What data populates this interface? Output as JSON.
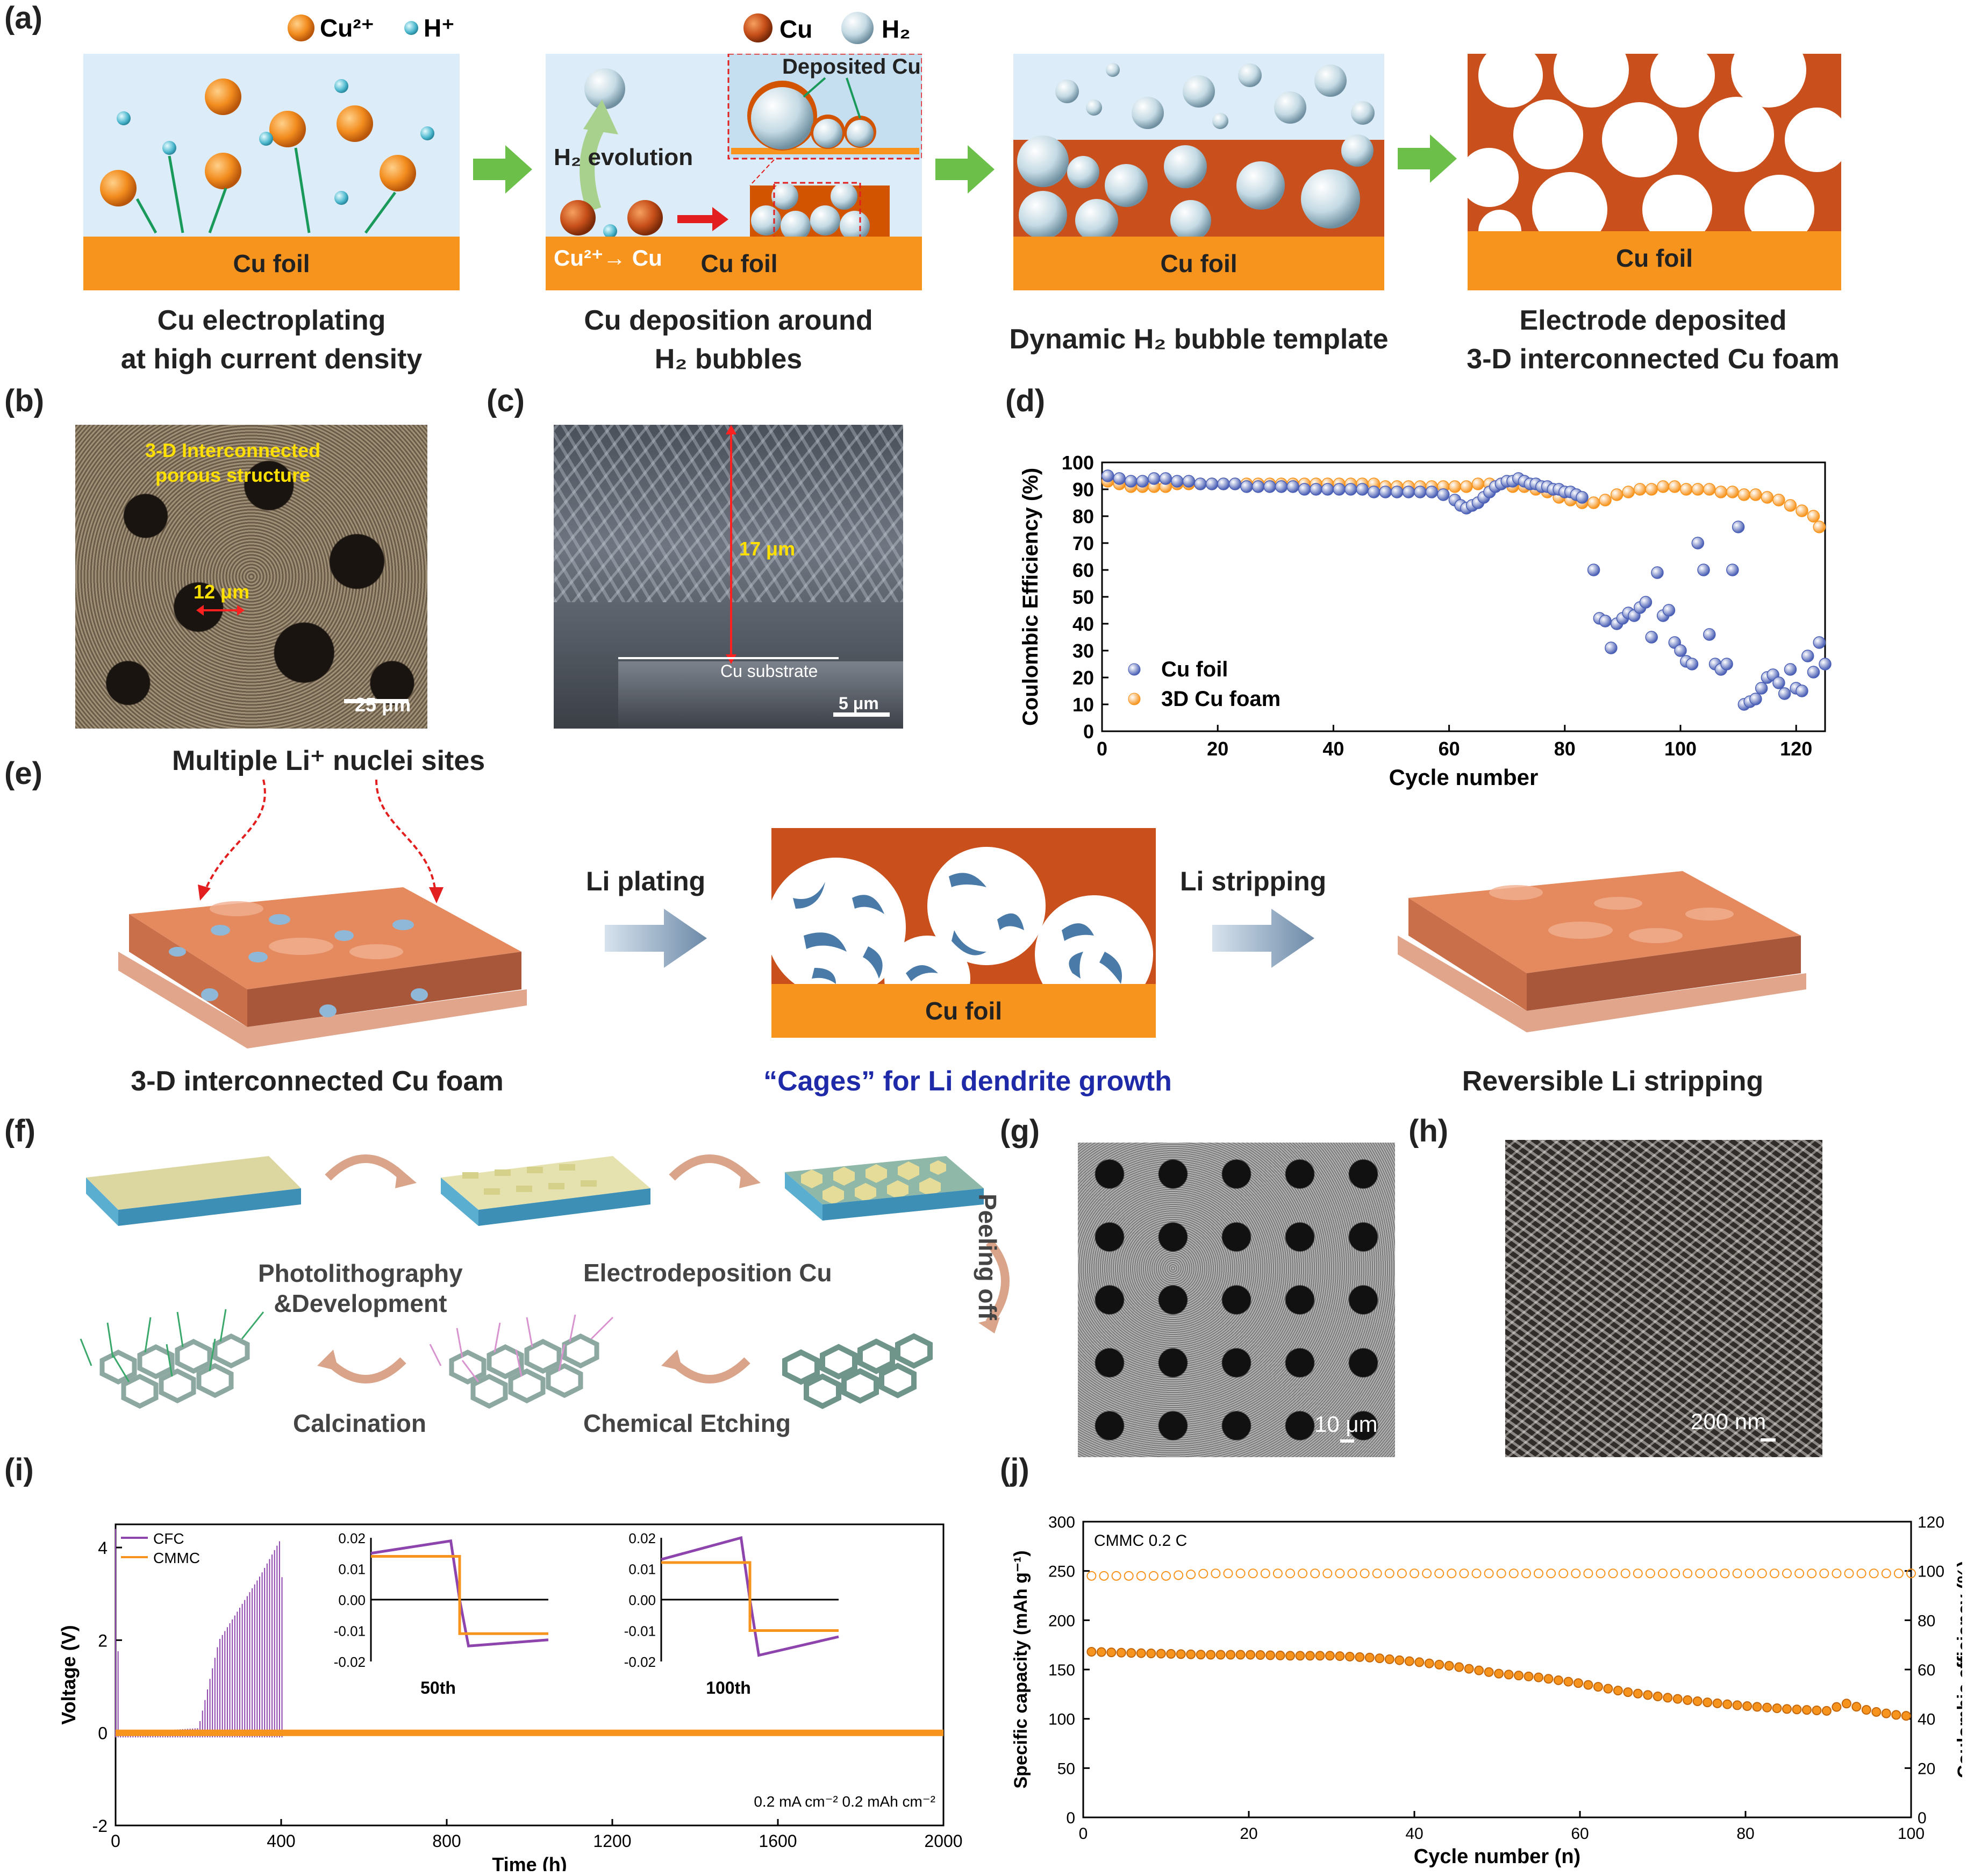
{
  "labels": {
    "a": "(a)",
    "b": "(b)",
    "c": "(c)",
    "d": "(d)",
    "e": "(e)",
    "f": "(f)",
    "g": "(g)",
    "h": "(h)",
    "i": "(i)",
    "j": "(j)"
  },
  "panel_a": {
    "legend1": {
      "cu2": "Cu²⁺",
      "h": "H⁺"
    },
    "legend2": {
      "cu": "Cu",
      "h2": "H₂"
    },
    "foil": "Cu foil",
    "h2_evolution": "H₂ evolution",
    "deposited_cu": "Deposited Cu",
    "cu2_to_cu": "Cu²⁺→ Cu",
    "captions": [
      "Cu electroplating\nat high current density",
      "Cu deposition around\nH₂ bubbles",
      "Dynamic H₂ bubble template",
      "Electrode deposited\n3-D interconnected Cu foam"
    ]
  },
  "panel_b": {
    "annotation": "3-D Interconnected\nporous structure",
    "pore": "12 μm",
    "scale": "25 μm"
  },
  "panel_c": {
    "height": "17 μm",
    "substrate": "Cu substrate",
    "scale": "5 μm"
  },
  "panel_e": {
    "nuclei": "Multiple Li⁺ nuclei sites",
    "plating": "Li plating",
    "stripping": "Li stripping",
    "foil": "Cu foil",
    "cap_left": "3-D interconnected Cu foam",
    "cap_mid": "“Cages” for Li dendrite growth",
    "cap_right": "Reversible Li stripping"
  },
  "panel_f": {
    "step1": "Photolithography\n&Development",
    "step2": "Electrodeposition  Cu",
    "step3": "Peeling off",
    "step4": "Chemical Etching",
    "step5": "Calcination"
  },
  "panel_g": {
    "scale": "10 μm"
  },
  "panel_h": {
    "scale": "200 nm"
  },
  "colors": {
    "orange": "#f7941d",
    "blue_series": "#4a5fb5",
    "purple": "#8e44ad",
    "copper": "#c9501c"
  },
  "chart_data": [
    {
      "id": "d",
      "type": "scatter",
      "xlabel": "Cycle number",
      "ylabel": "Coulombic Efficiency (%)",
      "xlim": [
        0,
        125
      ],
      "ylim": [
        0,
        100
      ],
      "xticks": [
        0,
        20,
        40,
        60,
        80,
        100,
        120
      ],
      "yticks": [
        0,
        10,
        20,
        30,
        40,
        50,
        60,
        70,
        80,
        90,
        100
      ],
      "series": [
        {
          "name": "Cu foil",
          "color": "#4a5fb5",
          "x": [
            1,
            3,
            5,
            7,
            9,
            11,
            13,
            15,
            17,
            19,
            21,
            23,
            25,
            27,
            29,
            31,
            33,
            35,
            37,
            39,
            41,
            43,
            45,
            47,
            49,
            51,
            53,
            55,
            57,
            59,
            61,
            62,
            63,
            64,
            65,
            66,
            67,
            68,
            69,
            70,
            71,
            72,
            73,
            74,
            75,
            76,
            77,
            78,
            79,
            80,
            81,
            82,
            83,
            85,
            86,
            87,
            88,
            89,
            90,
            91,
            92,
            93,
            94,
            95,
            96,
            97,
            98,
            99,
            100,
            101,
            102,
            103,
            104,
            105,
            106,
            107,
            108,
            109,
            110,
            111,
            112,
            113,
            114,
            115,
            116,
            117,
            118,
            119,
            120,
            121,
            122,
            123,
            124,
            125
          ],
          "y": [
            95,
            94,
            93,
            93,
            94,
            94,
            93,
            93,
            92,
            92,
            92,
            92,
            91,
            91,
            91,
            91,
            91,
            90,
            90,
            90,
            90,
            90,
            90,
            89,
            89,
            89,
            89,
            89,
            89,
            88,
            86,
            84,
            83,
            84,
            85,
            87,
            89,
            91,
            92,
            93,
            93,
            94,
            93,
            92,
            92,
            91,
            91,
            90,
            90,
            89,
            89,
            88,
            87,
            60,
            42,
            41,
            31,
            40,
            42,
            44,
            43,
            46,
            48,
            35,
            59,
            43,
            45,
            33,
            30,
            26,
            25,
            70,
            60,
            36,
            25,
            23,
            25,
            60,
            76,
            10,
            11,
            12,
            16,
            20,
            21,
            18,
            14,
            23,
            16,
            15,
            28,
            22,
            33,
            25
          ]
        },
        {
          "name": "3D Cu foam",
          "color": "#f7941d",
          "x": [
            1,
            3,
            5,
            7,
            9,
            11,
            13,
            15,
            17,
            19,
            21,
            23,
            25,
            27,
            29,
            31,
            33,
            35,
            37,
            39,
            41,
            43,
            45,
            47,
            49,
            51,
            53,
            55,
            57,
            59,
            61,
            63,
            65,
            67,
            69,
            71,
            73,
            75,
            77,
            79,
            81,
            83,
            85,
            87,
            89,
            91,
            93,
            95,
            97,
            99,
            101,
            103,
            105,
            107,
            109,
            111,
            113,
            115,
            117,
            119,
            121,
            123,
            124
          ],
          "y": [
            93,
            92,
            91,
            91,
            91,
            91,
            92,
            92,
            92,
            92,
            92,
            92,
            92,
            92,
            92,
            92,
            92,
            92,
            92,
            92,
            92,
            92,
            92,
            92,
            91,
            91,
            91,
            91,
            91,
            91,
            91,
            91,
            92,
            92,
            92,
            91,
            91,
            90,
            89,
            87,
            86,
            85,
            85,
            86,
            88,
            89,
            90,
            90,
            91,
            91,
            90,
            90,
            90,
            89,
            89,
            88,
            88,
            87,
            86,
            84,
            82,
            80,
            76
          ]
        }
      ]
    },
    {
      "id": "i",
      "type": "line",
      "xlabel": "Time (h)",
      "ylabel": "Voltage (V)",
      "xlim": [
        0,
        2000
      ],
      "ylim": [
        -2,
        4.5
      ],
      "xticks": [
        0,
        400,
        800,
        1200,
        1600,
        2000
      ],
      "yticks": [
        -2,
        0,
        2,
        4
      ],
      "legend": [
        "CFC",
        "CMMC"
      ],
      "annotation": "0.2 mA cm⁻²   0.2 mAh cm⁻²",
      "series": [
        {
          "name": "CFC",
          "color": "#8e44ad",
          "x": [
            0,
            10,
            20,
            200,
            250,
            300,
            350,
            400,
            410
          ],
          "y": [
            4.4,
            0,
            0,
            0.1,
            2.0,
            2.7,
            3.4,
            4.2,
            0
          ]
        },
        {
          "name": "CMMC",
          "color": "#f7941d",
          "x": [
            0,
            2000
          ],
          "y": [
            0,
            0
          ]
        }
      ],
      "insets": [
        {
          "label": "50th",
          "yticks": [
            -0.02,
            -0.01,
            0.0,
            0.01,
            0.02
          ],
          "series": [
            {
              "name": "CFC",
              "x": [
                0,
                0.45,
                0.5,
                0.55,
                1
              ],
              "y": [
                0.015,
                0.019,
                0.0,
                -0.015,
                -0.013
              ]
            },
            {
              "name": "CMMC",
              "x": [
                0,
                0.5,
                0.5,
                1
              ],
              "y": [
                0.014,
                0.014,
                -0.011,
                -0.011
              ]
            }
          ]
        },
        {
          "label": "100th",
          "yticks": [
            -0.02,
            -0.01,
            0.0,
            0.01,
            0.02
          ],
          "series": [
            {
              "name": "CFC",
              "x": [
                0,
                0.45,
                0.5,
                0.55,
                1
              ],
              "y": [
                0.013,
                0.02,
                0.0,
                -0.018,
                -0.012
              ]
            },
            {
              "name": "CMMC",
              "x": [
                0,
                0.5,
                0.5,
                1
              ],
              "y": [
                0.012,
                0.012,
                -0.01,
                -0.01
              ]
            }
          ]
        }
      ]
    },
    {
      "id": "j",
      "type": "scatter",
      "title": "CMMC  0.2 C",
      "xlabel": "Cycle number (n)",
      "ylabel": "Specific capacity (mAh g⁻¹)",
      "y2label": "Coulombic efficiency (%)",
      "xlim": [
        0,
        100
      ],
      "ylim": [
        0,
        300
      ],
      "y2lim": [
        0,
        120
      ],
      "xticks": [
        0,
        20,
        40,
        60,
        80,
        100
      ],
      "yticks": [
        0,
        50,
        100,
        150,
        200,
        250,
        300
      ],
      "y2ticks": [
        0,
        20,
        40,
        60,
        80,
        100,
        120
      ],
      "series": [
        {
          "name": "Coulombic efficiency",
          "axis": "y2",
          "x": [
            1,
            5,
            10,
            15,
            20,
            25,
            30,
            35,
            40,
            45,
            50,
            55,
            60,
            65,
            70,
            75,
            80,
            85,
            90,
            95,
            99
          ],
          "y": [
            98,
            98,
            98,
            99,
            99,
            99,
            99,
            99,
            99,
            99,
            99,
            99,
            99,
            99,
            99,
            99,
            99,
            99,
            99,
            99,
            99
          ]
        },
        {
          "name": "Specific capacity",
          "axis": "y",
          "x": [
            1,
            5,
            10,
            15,
            20,
            25,
            30,
            35,
            40,
            45,
            50,
            55,
            60,
            65,
            70,
            75,
            80,
            85,
            90,
            92,
            95,
            99
          ],
          "y": [
            168,
            167,
            166,
            165,
            165,
            164,
            164,
            162,
            158,
            153,
            146,
            142,
            136,
            128,
            122,
            117,
            113,
            110,
            108,
            116,
            108,
            103
          ]
        }
      ]
    }
  ]
}
